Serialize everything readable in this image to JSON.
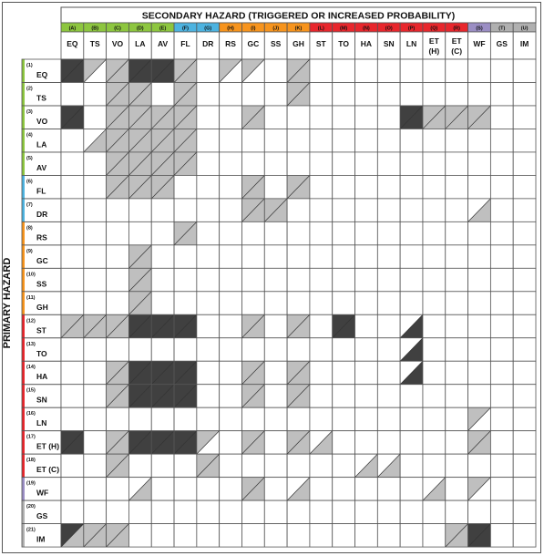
{
  "title": "SECONDARY HAZARD (TRIGGERED OR INCREASED PROBABILITY)",
  "row_axis_label": "PRIMARY HAZARD",
  "colors": {
    "none": "#ffffff",
    "light": "#bfbfbf",
    "dark": "#404040",
    "grid": "#555555",
    "bands": {
      "green": "#8dc63f",
      "blue": "#4db3e0",
      "orange": "#f7941d",
      "red": "#e8262c",
      "purple": "#9b8ec4",
      "grey": "#b0b0b0"
    }
  },
  "columns": [
    {
      "letter": "(A)",
      "abbr": "EQ",
      "band": "green"
    },
    {
      "letter": "(B)",
      "abbr": "TS",
      "band": "green"
    },
    {
      "letter": "(C)",
      "abbr": "VO",
      "band": "green"
    },
    {
      "letter": "(D)",
      "abbr": "LA",
      "band": "green"
    },
    {
      "letter": "(E)",
      "abbr": "AV",
      "band": "green"
    },
    {
      "letter": "(F)",
      "abbr": "FL",
      "band": "blue"
    },
    {
      "letter": "(G)",
      "abbr": "DR",
      "band": "blue"
    },
    {
      "letter": "(H)",
      "abbr": "RS",
      "band": "orange"
    },
    {
      "letter": "(I)",
      "abbr": "GC",
      "band": "orange"
    },
    {
      "letter": "(J)",
      "abbr": "SS",
      "band": "orange"
    },
    {
      "letter": "(K)",
      "abbr": "GH",
      "band": "orange"
    },
    {
      "letter": "(L)",
      "abbr": "ST",
      "band": "red"
    },
    {
      "letter": "(M)",
      "abbr": "TO",
      "band": "red"
    },
    {
      "letter": "(N)",
      "abbr": "HA",
      "band": "red"
    },
    {
      "letter": "(O)",
      "abbr": "SN",
      "band": "red"
    },
    {
      "letter": "(P)",
      "abbr": "LN",
      "band": "red"
    },
    {
      "letter": "(Q)",
      "abbr": "ET\n(H)",
      "band": "red"
    },
    {
      "letter": "(R)",
      "abbr": "ET\n(C)",
      "band": "red"
    },
    {
      "letter": "(S)",
      "abbr": "WF",
      "band": "purple"
    },
    {
      "letter": "(T)",
      "abbr": "GS",
      "band": "grey"
    },
    {
      "letter": "(U)",
      "abbr": "IM",
      "band": "grey"
    }
  ],
  "rows": [
    {
      "num": "(1)",
      "abbr": "EQ",
      "band": "green",
      "cells": [
        "DD",
        "LN",
        "LL",
        "DD",
        "DD",
        "LL",
        "NN",
        "LN",
        "LN",
        "NN",
        "LL",
        "NN",
        "NN",
        "NN",
        "NN",
        "NN",
        "NN",
        "NN",
        "NN",
        "NN",
        "NN"
      ]
    },
    {
      "num": "(2)",
      "abbr": "TS",
      "band": "green",
      "cells": [
        "NN",
        "NN",
        "LL",
        "LL",
        "NN",
        "LL",
        "NN",
        "NN",
        "NN",
        "NN",
        "LL",
        "NN",
        "NN",
        "NN",
        "NN",
        "NN",
        "NN",
        "NN",
        "NN",
        "NN",
        "NN"
      ]
    },
    {
      "num": "(3)",
      "abbr": "VO",
      "band": "green",
      "cells": [
        "DD",
        "NN",
        "LL",
        "LL",
        "LL",
        "LL",
        "NN",
        "NN",
        "LL",
        "NN",
        "NN",
        "NN",
        "NN",
        "NN",
        "NN",
        "DD",
        "LL",
        "LL",
        "LL",
        "NN",
        "NN"
      ]
    },
    {
      "num": "(4)",
      "abbr": "LA",
      "band": "green",
      "cells": [
        "NN",
        "NL",
        "LL",
        "LL",
        "LL",
        "LL",
        "NN",
        "NN",
        "NN",
        "NN",
        "NN",
        "NN",
        "NN",
        "NN",
        "NN",
        "NN",
        "NN",
        "NN",
        "NN",
        "NN",
        "NN"
      ]
    },
    {
      "num": "(5)",
      "abbr": "AV",
      "band": "green",
      "cells": [
        "NN",
        "NN",
        "LL",
        "LL",
        "LL",
        "LL",
        "NN",
        "NN",
        "NN",
        "NN",
        "NN",
        "NN",
        "NN",
        "NN",
        "NN",
        "NN",
        "NN",
        "NN",
        "NN",
        "NN",
        "NN"
      ]
    },
    {
      "num": "(6)",
      "abbr": "FL",
      "band": "blue",
      "cells": [
        "NN",
        "NN",
        "LL",
        "LL",
        "LL",
        "NN",
        "NN",
        "NN",
        "LL",
        "NN",
        "LL",
        "NN",
        "NN",
        "NN",
        "NN",
        "NN",
        "NN",
        "NN",
        "NN",
        "NN",
        "NN"
      ]
    },
    {
      "num": "(7)",
      "abbr": "DR",
      "band": "blue",
      "cells": [
        "NN",
        "NN",
        "NN",
        "NN",
        "NN",
        "NN",
        "NN",
        "NN",
        "LL",
        "LL",
        "NN",
        "NN",
        "NN",
        "NN",
        "NN",
        "NN",
        "NN",
        "NN",
        "NL",
        "NN",
        "NN"
      ]
    },
    {
      "num": "(8)",
      "abbr": "RS",
      "band": "orange",
      "cells": [
        "NN",
        "NN",
        "NN",
        "NN",
        "NN",
        "LL",
        "NN",
        "NN",
        "NN",
        "NN",
        "NN",
        "NN",
        "NN",
        "NN",
        "NN",
        "NN",
        "NN",
        "NN",
        "NN",
        "NN",
        "NN"
      ]
    },
    {
      "num": "(9)",
      "abbr": "GC",
      "band": "orange",
      "cells": [
        "NN",
        "NN",
        "NN",
        "LL",
        "NN",
        "NN",
        "NN",
        "NN",
        "NN",
        "NN",
        "NN",
        "NN",
        "NN",
        "NN",
        "NN",
        "NN",
        "NN",
        "NN",
        "NN",
        "NN",
        "NN"
      ]
    },
    {
      "num": "(10)",
      "abbr": "SS",
      "band": "orange",
      "cells": [
        "NN",
        "NN",
        "NN",
        "LL",
        "NN",
        "NN",
        "NN",
        "NN",
        "NN",
        "NN",
        "NN",
        "NN",
        "NN",
        "NN",
        "NN",
        "NN",
        "NN",
        "NN",
        "NN",
        "NN",
        "NN"
      ]
    },
    {
      "num": "(11)",
      "abbr": "GH",
      "band": "orange",
      "cells": [
        "NN",
        "NN",
        "NN",
        "LL",
        "NN",
        "NN",
        "NN",
        "NN",
        "NN",
        "NN",
        "NN",
        "NN",
        "NN",
        "NN",
        "NN",
        "NN",
        "NN",
        "NN",
        "NN",
        "NN",
        "NN"
      ]
    },
    {
      "num": "(12)",
      "abbr": "ST",
      "band": "red",
      "cells": [
        "LL",
        "LL",
        "LL",
        "DD",
        "DD",
        "DD",
        "NN",
        "NN",
        "LL",
        "NN",
        "LL",
        "NN",
        "DD",
        "NN",
        "NN",
        "ND",
        "NN",
        "NN",
        "NN",
        "NN",
        "NN"
      ]
    },
    {
      "num": "(13)",
      "abbr": "TO",
      "band": "red",
      "cells": [
        "NN",
        "NN",
        "NN",
        "NN",
        "NN",
        "NN",
        "NN",
        "NN",
        "NN",
        "NN",
        "NN",
        "NN",
        "NN",
        "NN",
        "NN",
        "ND",
        "NN",
        "NN",
        "NN",
        "NN",
        "NN"
      ]
    },
    {
      "num": "(14)",
      "abbr": "HA",
      "band": "red",
      "cells": [
        "NN",
        "NN",
        "LL",
        "DD",
        "DD",
        "DD",
        "NN",
        "NN",
        "LL",
        "NN",
        "LL",
        "NN",
        "NN",
        "NN",
        "NN",
        "ND",
        "NN",
        "NN",
        "NN",
        "NN",
        "NN"
      ]
    },
    {
      "num": "(15)",
      "abbr": "SN",
      "band": "red",
      "cells": [
        "NN",
        "NN",
        "LL",
        "DD",
        "DD",
        "DD",
        "NN",
        "NN",
        "LL",
        "NN",
        "LL",
        "NN",
        "NN",
        "NN",
        "NN",
        "NN",
        "NN",
        "NN",
        "NN",
        "NN",
        "NN"
      ]
    },
    {
      "num": "(16)",
      "abbr": "LN",
      "band": "red",
      "cells": [
        "NN",
        "NN",
        "NN",
        "NN",
        "NN",
        "NN",
        "NN",
        "NN",
        "NN",
        "NN",
        "NN",
        "NN",
        "NN",
        "NN",
        "NN",
        "NN",
        "NN",
        "NN",
        "LN",
        "NN",
        "NN"
      ]
    },
    {
      "num": "(17)",
      "abbr": "ET (H)",
      "band": "red",
      "cells": [
        "DD",
        "NN",
        "LL",
        "DD",
        "DD",
        "DD",
        "LN",
        "NN",
        "LL",
        "NN",
        "LL",
        "NL",
        "NN",
        "NN",
        "NN",
        "NN",
        "NN",
        "NN",
        "LL",
        "NN",
        "NN"
      ]
    },
    {
      "num": "(18)",
      "abbr": "ET (C)",
      "band": "red",
      "cells": [
        "NN",
        "NN",
        "LL",
        "NN",
        "NN",
        "NN",
        "LL",
        "NN",
        "NN",
        "NN",
        "NN",
        "NN",
        "NN",
        "NL",
        "NL",
        "NN",
        "NN",
        "NN",
        "NN",
        "NN",
        "NN"
      ]
    },
    {
      "num": "(19)",
      "abbr": "WF",
      "band": "purple",
      "cells": [
        "NN",
        "NN",
        "NN",
        "NL",
        "NN",
        "NN",
        "NN",
        "NN",
        "LL",
        "NN",
        "NL",
        "NN",
        "NN",
        "NN",
        "NN",
        "NN",
        "NL",
        "NN",
        "LN",
        "NN",
        "NN"
      ]
    },
    {
      "num": "(20)",
      "abbr": "GS",
      "band": "grey",
      "cells": [
        "NN",
        "NN",
        "NN",
        "NN",
        "NN",
        "NN",
        "NN",
        "NN",
        "NN",
        "NN",
        "NN",
        "NN",
        "NN",
        "NN",
        "NN",
        "NN",
        "NN",
        "NN",
        "NN",
        "NN",
        "NN"
      ]
    },
    {
      "num": "(21)",
      "abbr": "IM",
      "band": "grey",
      "cells": [
        "DL",
        "LL",
        "LL",
        "NN",
        "NN",
        "NN",
        "NN",
        "NN",
        "NN",
        "NN",
        "NN",
        "NN",
        "NN",
        "NN",
        "NN",
        "NN",
        "NN",
        "LL",
        "DD",
        "NN",
        "NN"
      ]
    }
  ]
}
